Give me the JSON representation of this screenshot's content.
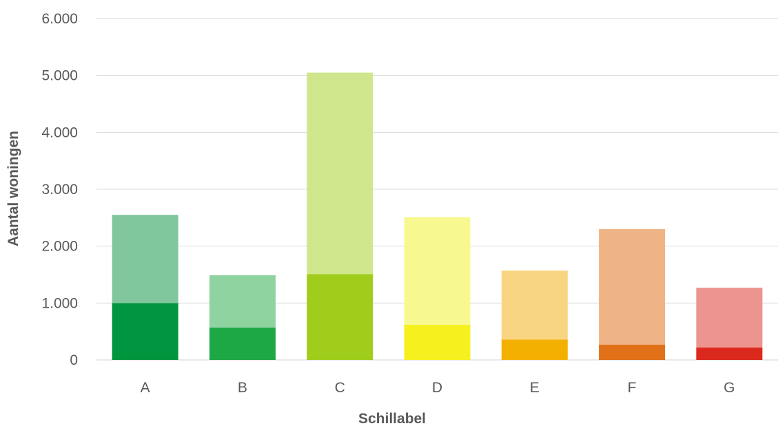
{
  "chart_data": {
    "type": "bar",
    "stacked": true,
    "categories": [
      "A",
      "B",
      "C",
      "D",
      "E",
      "F",
      "G"
    ],
    "series": [
      {
        "values": [
          1000,
          570,
          1510,
          620,
          360,
          270,
          220
        ],
        "colors": [
          "#009640",
          "#1ea845",
          "#a0cd1b",
          "#f5f01e",
          "#f4b000",
          "#e07118",
          "#dc291e"
        ]
      },
      {
        "values": [
          1550,
          920,
          3540,
          1890,
          1210,
          2030,
          1050
        ],
        "colors": [
          "#80c79e",
          "#8fd4a0",
          "#d0e68d",
          "#f8f890",
          "#f8d580",
          "#eeb486",
          "#ed948e"
        ]
      }
    ],
    "xlabel": "Schillabel",
    "ylabel": "Aantal woningen",
    "ylim": [
      0,
      6000
    ],
    "yticks": [
      "0",
      "1.000",
      "2.000",
      "3.000",
      "4.000",
      "5.000",
      "6.000"
    ],
    "grid": true
  }
}
